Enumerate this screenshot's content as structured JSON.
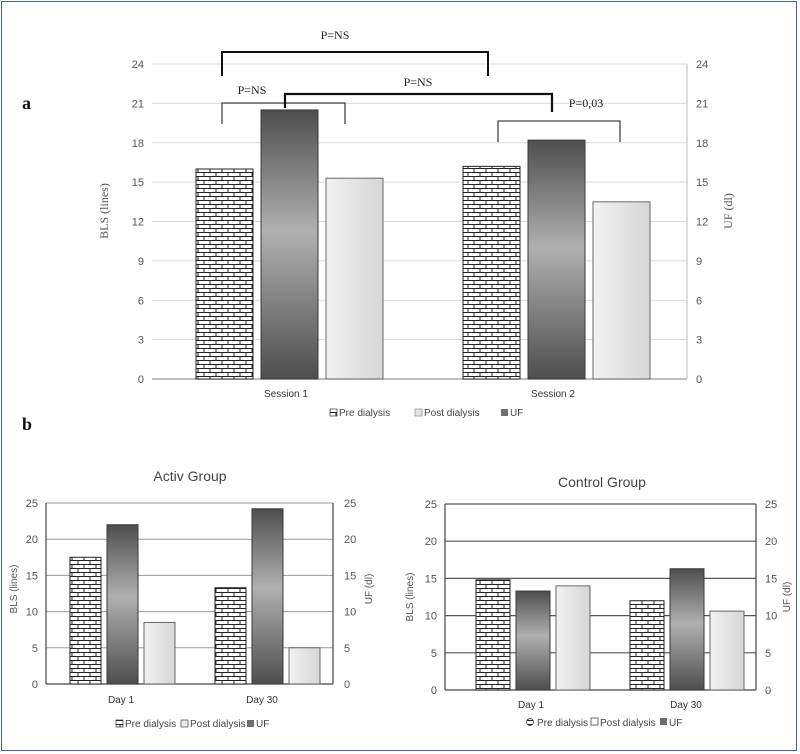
{
  "labels": {
    "panel_a": "a",
    "panel_b": "b"
  },
  "colors": {
    "grid": "#d9d9d9",
    "brick_fill": "#ffffff",
    "brick_line": "#222222",
    "uf_dark": "#5a5a5a",
    "uf_light": "#a8a8a8",
    "post_fill": "#dcdcdc",
    "tick_text": "#555555",
    "border": "#3a64b0"
  },
  "chart_data": [
    {
      "type": "bar",
      "panel": "a",
      "title": "",
      "categories": [
        "Session 1",
        "Session 2"
      ],
      "series": [
        {
          "name": "Pre dialysis",
          "axis": "left",
          "values": [
            16,
            16.2
          ]
        },
        {
          "name": "UF",
          "axis": "right",
          "values": [
            20.5,
            18.2
          ]
        },
        {
          "name": "Post dialysis",
          "axis": "left",
          "values": [
            15.3,
            13.5
          ]
        }
      ],
      "legend_order": [
        "Pre dialysis",
        "Post dialysis",
        "UF"
      ],
      "ylabel": "BLS (lines)",
      "y2label": "UF (dl)",
      "ylim": [
        0,
        24
      ],
      "y2lim": [
        0,
        24
      ],
      "yticks": [
        "0",
        "3",
        "6",
        "9",
        "12",
        "15",
        "18",
        "21",
        "24"
      ],
      "y2ticks": [
        "0",
        "3",
        "6",
        "9",
        "12",
        "15",
        "18",
        "21",
        "24"
      ],
      "grid": true,
      "legend": "bottom",
      "annotations": [
        "P=NS",
        "P=NS",
        "P=NS",
        "P=0,03"
      ]
    },
    {
      "type": "bar",
      "panel": "b-left",
      "title": "Activ Group",
      "categories": [
        "Day 1",
        "Day 30"
      ],
      "series": [
        {
          "name": "Pre dialysis",
          "axis": "left",
          "values": [
            17.5,
            13.3
          ]
        },
        {
          "name": "UF",
          "axis": "right",
          "values": [
            22,
            24.2
          ]
        },
        {
          "name": "Post dialysis",
          "axis": "left",
          "values": [
            8.5,
            5
          ]
        }
      ],
      "legend_order": [
        "Pre dialysis",
        "Post dialysis",
        "UF"
      ],
      "ylabel": "BLS (lines)",
      "y2label": "UF (dl)",
      "ylim": [
        0,
        25
      ],
      "y2lim": [
        0,
        25
      ],
      "yticks": [
        "0",
        "5",
        "10",
        "15",
        "20",
        "25"
      ],
      "y2ticks": [
        "0",
        "5",
        "10",
        "15",
        "20",
        "25"
      ],
      "grid": true,
      "legend": "bottom"
    },
    {
      "type": "bar",
      "panel": "b-right",
      "title": "Control Group",
      "categories": [
        "Day 1",
        "Day 30"
      ],
      "series": [
        {
          "name": "Pre dialysis",
          "axis": "left",
          "values": [
            14.8,
            12
          ]
        },
        {
          "name": "UF",
          "axis": "right",
          "values": [
            13.3,
            16.3
          ]
        },
        {
          "name": "Post dialysis",
          "axis": "left",
          "values": [
            14,
            10.6
          ]
        }
      ],
      "legend_order": [
        "Pre dialysis",
        "Post dialysis",
        "UF"
      ],
      "ylabel": "BLS (lines)",
      "y2label": "UF (dl)",
      "ylim": [
        0,
        25
      ],
      "y2lim": [
        0,
        25
      ],
      "yticks": [
        "0",
        "5",
        "10",
        "15",
        "20",
        "25"
      ],
      "y2ticks": [
        "0",
        "5",
        "10",
        "15",
        "20",
        "25"
      ],
      "grid": true,
      "legend": "bottom"
    }
  ]
}
